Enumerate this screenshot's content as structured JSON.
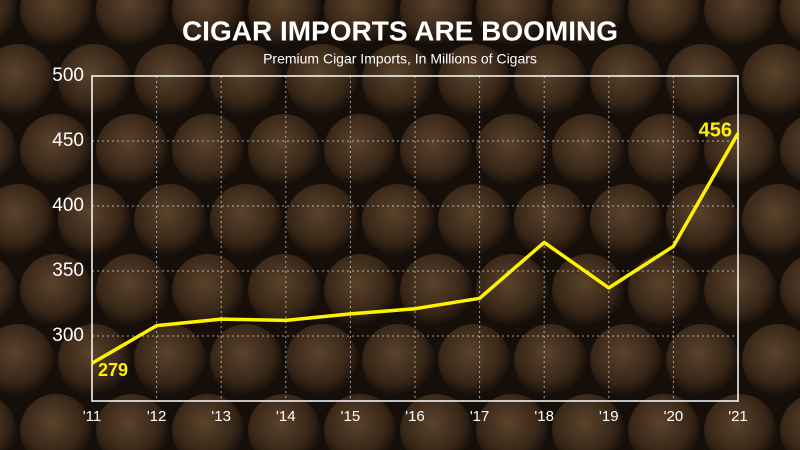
{
  "chart_data": {
    "type": "line",
    "title": "CIGAR IMPORTS ARE BOOMING",
    "subtitle": "Premium Cigar Imports, In Millions of Cigars",
    "categories": [
      "'11",
      "'12",
      "'13",
      "'14",
      "'15",
      "'16",
      "'17",
      "'18",
      "'19",
      "'20",
      "'21"
    ],
    "values": [
      279,
      308,
      313,
      312,
      317,
      321,
      329,
      372,
      337,
      369,
      456
    ],
    "color": "#fff200",
    "ylim": [
      250,
      500
    ],
    "yticks": [
      300,
      350,
      400,
      450,
      500
    ],
    "grid": true
  }
}
